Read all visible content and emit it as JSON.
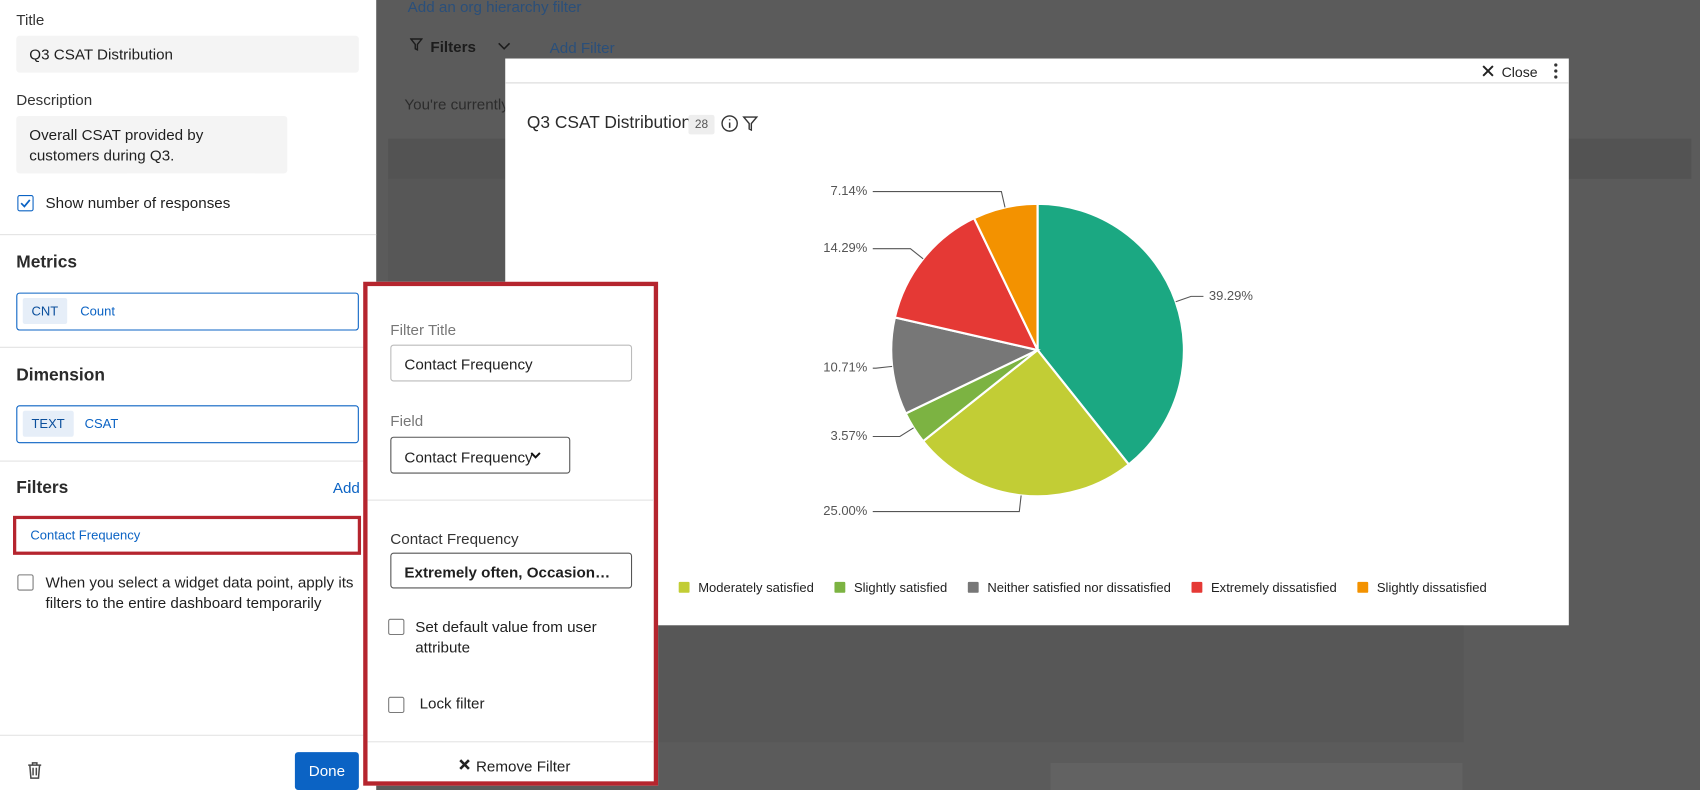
{
  "left_panel": {
    "title_label": "Title",
    "title_value": "Q3 CSAT Distribution",
    "description_label": "Description",
    "description_value": "Overall CSAT provided by customers during Q3.",
    "show_responses": "Show number of responses",
    "metrics_heading": "Metrics",
    "metric_type": "CNT",
    "metric_name": "Count",
    "dimension_heading": "Dimension",
    "dimension_type": "TEXT",
    "dimension_name": "CSAT",
    "filters_heading": "Filters",
    "add": "Add",
    "filter_item": "Contact Frequency",
    "apply_filters": "When you select a widget data point, apply its filters to the entire dashboard temporarily",
    "done": "Done"
  },
  "background": {
    "org_filter": "Add an org hierarchy filter",
    "filters": "Filters",
    "add_filter": "Add Filter",
    "notice": "You're currently"
  },
  "modal": {
    "close": "Close"
  },
  "filter_popover": {
    "title_label": "Filter Title",
    "title_value": "Contact Frequency",
    "field_label": "Field",
    "field_value": "Contact Frequency",
    "values_label": "Contact Frequency",
    "values_value": "Extremely often, Occasion…",
    "default_from_attribute": "Set default value from user attribute",
    "lock": "Lock filter",
    "remove": "Remove Filter"
  },
  "chart_data": {
    "type": "pie",
    "title": "Q3 CSAT Distribution",
    "response_count": 28,
    "categories": [
      null,
      "Moderately satisfied",
      "Slightly satisfied",
      "Neither satisfied nor dissatisfied",
      "Extremely dissatisfied",
      "Slightly dissatisfied"
    ],
    "values": [
      39.29,
      25.0,
      3.57,
      10.71,
      14.29,
      7.14
    ],
    "value_labels": [
      "39.29%",
      "25.00%",
      "3.57%",
      "10.71%",
      "14.29%",
      "7.14%"
    ],
    "colors": [
      "#1ba882",
      "#c2cd35",
      "#7cb342",
      "#777777",
      "#e53935",
      "#f39200"
    ]
  }
}
